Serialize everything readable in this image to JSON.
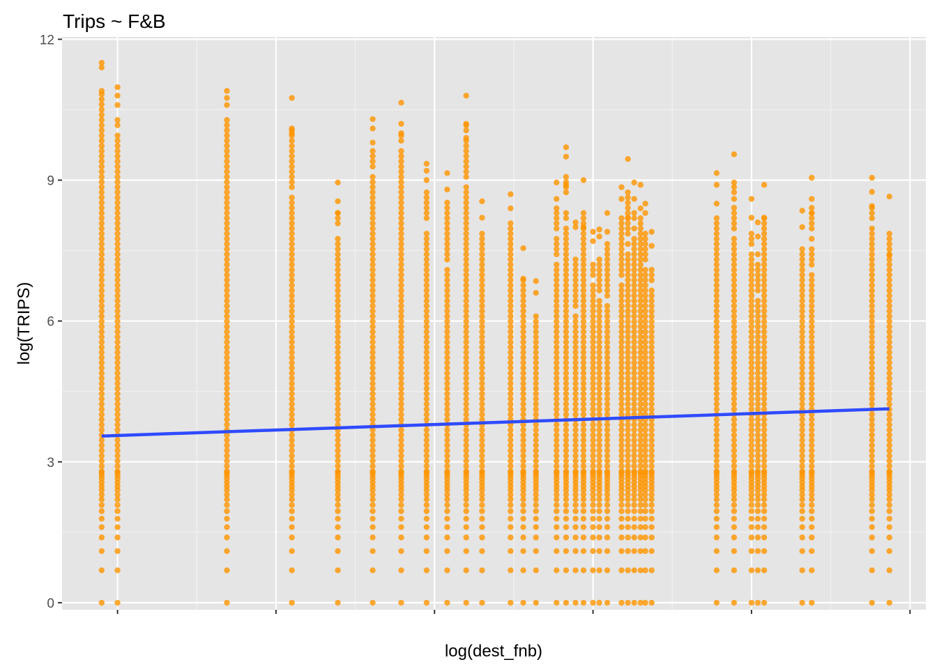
{
  "chart_data": {
    "type": "scatter",
    "title": "Trips ~ F&B",
    "xlabel": "log(dest_fnb)",
    "ylabel": "log(TRIPS)",
    "ylim": [
      -0.15,
      12.05
    ],
    "xlim": [
      -0.35,
      5.1
    ],
    "yticks": [
      0,
      3,
      6,
      9,
      12
    ],
    "ytick_labels": [
      "0",
      "3",
      "6",
      "9",
      "12"
    ],
    "xticks": [
      0,
      1,
      2,
      3,
      4,
      5
    ],
    "xtick_labels": [
      "",
      "",
      "",
      "",
      "",
      ""
    ],
    "grid": true,
    "background": "#e5e5e5",
    "point_color": "#ff9500",
    "line_color": "#2f4bff",
    "columns": [
      {
        "x": -0.1,
        "ymin": 0,
        "ymax": 11.5,
        "extra": [
          11.4,
          10.9
        ]
      },
      {
        "x": 0.0,
        "ymin": 0,
        "ymax": 10.98,
        "extra": [
          10.8,
          10.6
        ]
      },
      {
        "x": 0.69,
        "ymin": 0,
        "ymax": 10.9,
        "extra": [
          10.75,
          10.6
        ]
      },
      {
        "x": 1.1,
        "ymin": 0,
        "ymax": 10.75,
        "extra": [
          10.1,
          10.0
        ]
      },
      {
        "x": 1.39,
        "ymin": 0,
        "ymax": 8.95,
        "extra": [
          8.55,
          8.3
        ]
      },
      {
        "x": 1.61,
        "ymin": 0,
        "ymax": 10.3,
        "extra": [
          10.1,
          9.8
        ]
      },
      {
        "x": 1.79,
        "ymin": 0,
        "ymax": 10.65,
        "extra": [
          10.2,
          10.0
        ]
      },
      {
        "x": 1.95,
        "ymin": 0,
        "ymax": 9.35,
        "extra": [
          9.2,
          9.0
        ]
      },
      {
        "x": 2.08,
        "ymin": 0,
        "ymax": 9.15,
        "extra": [
          8.8
        ]
      },
      {
        "x": 2.2,
        "ymin": 0,
        "ymax": 10.8,
        "extra": [
          10.2,
          9.9
        ]
      },
      {
        "x": 2.3,
        "ymin": 0,
        "ymax": 8.55,
        "extra": [
          8.2
        ]
      },
      {
        "x": 2.48,
        "ymin": 0,
        "ymax": 8.7,
        "extra": [
          8.4
        ]
      },
      {
        "x": 2.56,
        "ymin": 0,
        "ymax": 7.55,
        "extra": [
          6.9
        ]
      },
      {
        "x": 2.64,
        "ymin": 0,
        "ymax": 6.85,
        "extra": [
          6.6
        ]
      },
      {
        "x": 2.77,
        "ymin": 0,
        "ymax": 8.95,
        "extra": [
          8.6,
          8.4
        ]
      },
      {
        "x": 2.83,
        "ymin": 0,
        "ymax": 9.7,
        "extra": [
          9.5,
          8.9
        ]
      },
      {
        "x": 2.89,
        "ymin": 0,
        "ymax": 8.1,
        "extra": [
          8.0
        ]
      },
      {
        "x": 2.94,
        "ymin": 0,
        "ymax": 9.0,
        "extra": [
          8.0
        ]
      },
      {
        "x": 3.0,
        "ymin": 0,
        "ymax": 7.9,
        "extra": [
          7.7
        ]
      },
      {
        "x": 3.04,
        "ymin": 0,
        "ymax": 7.95,
        "extra": [
          7.8
        ]
      },
      {
        "x": 3.09,
        "ymin": 0,
        "ymax": 8.3,
        "extra": [
          7.9
        ]
      },
      {
        "x": 3.18,
        "ymin": 0,
        "ymax": 8.85,
        "extra": [
          8.6
        ]
      },
      {
        "x": 3.22,
        "ymin": 0,
        "ymax": 9.45,
        "extra": [
          8.2
        ]
      },
      {
        "x": 3.26,
        "ymin": 0,
        "ymax": 8.95,
        "extra": [
          8.6
        ]
      },
      {
        "x": 3.3,
        "ymin": 0,
        "ymax": 8.9,
        "extra": [
          8.4
        ]
      },
      {
        "x": 3.33,
        "ymin": 0,
        "ymax": 8.5,
        "extra": [
          8.3
        ]
      },
      {
        "x": 3.37,
        "ymin": 0,
        "ymax": 7.9,
        "extra": [
          7.6
        ]
      },
      {
        "x": 3.78,
        "ymin": 0,
        "ymax": 9.15,
        "extra": [
          8.9,
          8.5
        ]
      },
      {
        "x": 3.89,
        "ymin": 0,
        "ymax": 9.55,
        "extra": [
          8.95,
          8.6
        ]
      },
      {
        "x": 4.0,
        "ymin": 0,
        "ymax": 8.6,
        "extra": [
          8.2
        ]
      },
      {
        "x": 4.04,
        "ymin": 0,
        "ymax": 8.1,
        "extra": [
          7.8
        ]
      },
      {
        "x": 4.08,
        "ymin": 0,
        "ymax": 8.9,
        "extra": [
          8.2
        ]
      },
      {
        "x": 4.32,
        "ymin": 0,
        "ymax": 8.35,
        "extra": [
          8.0
        ]
      },
      {
        "x": 4.38,
        "ymin": 0,
        "ymax": 9.05,
        "extra": [
          8.6,
          8.3
        ]
      },
      {
        "x": 4.76,
        "ymin": 0,
        "ymax": 9.05,
        "extra": [
          8.75,
          8.45
        ]
      },
      {
        "x": 4.87,
        "ymin": 0,
        "ymax": 8.65,
        "extra": [
          7.4
        ]
      }
    ],
    "low_values": [
      0,
      0.69,
      1.1,
      1.39,
      1.61,
      1.79,
      1.95,
      2.08,
      2.2,
      2.3,
      2.4,
      2.48,
      2.56,
      2.64,
      2.71,
      2.77
    ],
    "fit_line": {
      "x": [
        -0.1,
        4.87
      ],
      "y": [
        3.55,
        4.13
      ]
    }
  }
}
